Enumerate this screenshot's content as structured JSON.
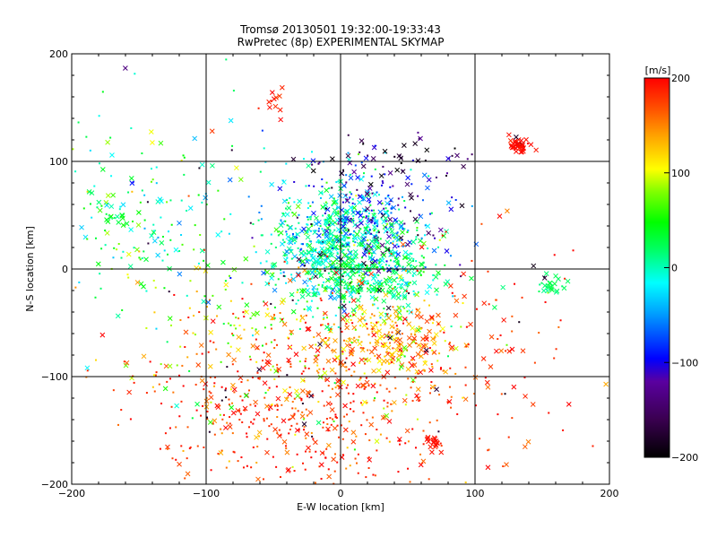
{
  "chart_data": {
    "type": "scatter",
    "title": "Tromsø 20130501 19:32:00-19:33:43",
    "subtitle": "RwPretec (8p) EXPERIMENTAL SKYMAP",
    "xlabel": "E-W location [km]",
    "ylabel": "N-S location [km]",
    "xlim": [
      -200,
      200
    ],
    "ylim": [
      -200,
      200
    ],
    "xticks": [
      -200,
      -100,
      0,
      100,
      200
    ],
    "yticks": [
      -200,
      -100,
      0,
      100,
      200
    ],
    "grid": true,
    "colorbar": {
      "label": "[m/s]",
      "min": -200,
      "max": 200,
      "ticks": [
        -200,
        -100,
        0,
        100,
        200
      ],
      "colormap": "rainbow+black"
    },
    "marker_kinds": [
      "cross",
      "dot"
    ],
    "clusters": [
      {
        "x": 0,
        "y": 20,
        "sx": 28,
        "sy": 28,
        "n": 700,
        "v": 0,
        "vs": 35,
        "cross_frac": 0.45
      },
      {
        "x": 25,
        "y": 50,
        "sx": 30,
        "sy": 25,
        "n": 200,
        "v": -90,
        "vs": 40,
        "cross_frac": 0.35
      },
      {
        "x": 25,
        "y": -5,
        "sx": 30,
        "sy": 18,
        "n": 250,
        "v": 15,
        "vs": 25,
        "cross_frac": 0.45
      },
      {
        "x": 35,
        "y": -65,
        "sx": 25,
        "sy": 20,
        "n": 250,
        "v": 140,
        "vs": 35,
        "cross_frac": 0.55
      },
      {
        "x": -40,
        "y": -130,
        "sx": 55,
        "sy": 40,
        "n": 400,
        "v": 180,
        "vs": 20,
        "cross_frac": 0.2
      },
      {
        "x": -60,
        "y": -60,
        "sx": 50,
        "sy": 40,
        "n": 200,
        "v": 120,
        "vs": 55,
        "cross_frac": 0.3
      },
      {
        "x": -160,
        "y": 50,
        "sx": 30,
        "sy": 40,
        "n": 120,
        "v": 20,
        "vs": 40,
        "cross_frac": 0.4
      },
      {
        "x": 40,
        "y": 100,
        "sx": 30,
        "sy": 10,
        "n": 60,
        "v": -160,
        "vs": 40,
        "cross_frac": 0.5
      },
      {
        "x": 100,
        "y": -80,
        "sx": 40,
        "sy": 60,
        "n": 100,
        "v": 180,
        "vs": 20,
        "cross_frac": 0.4
      },
      {
        "x": -110,
        "y": 40,
        "sx": 50,
        "sy": 60,
        "n": 100,
        "v": 20,
        "vs": 60,
        "cross_frac": 0.4
      },
      {
        "x": 0,
        "y": -110,
        "sx": 60,
        "sy": 60,
        "n": 150,
        "v": 160,
        "vs": 50,
        "cross_frac": 0.3
      }
    ],
    "groups": [
      {
        "x": 133,
        "y": 115,
        "sx": 5,
        "sy": 4,
        "n": 40,
        "v": 195,
        "vs": 5,
        "cross_frac": 0.9
      },
      {
        "x": 70,
        "y": -162,
        "sx": 3,
        "sy": 4,
        "n": 18,
        "v": 195,
        "vs": 5,
        "cross_frac": 0.9
      },
      {
        "x": 158,
        "y": -17,
        "sx": 6,
        "sy": 5,
        "n": 25,
        "v": 20,
        "vs": 10,
        "cross_frac": 0.8
      },
      {
        "x": -50,
        "y": 155,
        "sx": 5,
        "sy": 6,
        "n": 12,
        "v": 190,
        "vs": 10,
        "cross_frac": 0.8
      },
      {
        "x": -165,
        "y": 48,
        "sx": 5,
        "sy": 4,
        "n": 10,
        "v": 30,
        "vs": 10,
        "cross_frac": 0.9
      }
    ]
  }
}
